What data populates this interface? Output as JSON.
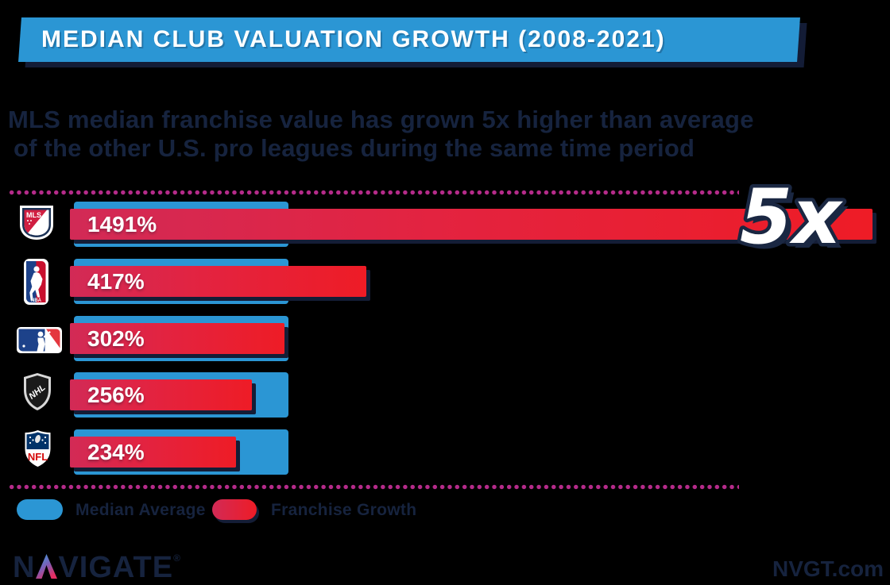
{
  "header": {
    "title": "MEDIAN CLUB VALUATION GROWTH (2008-2021)"
  },
  "subtitle": {
    "line1": "MLS median franchise value has grown 5x higher than average",
    "line2": "of the other U.S. pro leagues during the same time period"
  },
  "annotation": {
    "multiplier": "5x"
  },
  "legend": [
    {
      "label": "Median Average",
      "color": "#2b96d4"
    },
    {
      "label": "Franchise Growth",
      "color": "#ee1c26"
    }
  ],
  "footer": {
    "brand_n": "N",
    "brand_rest": "VIGATE",
    "trademark": "®",
    "website": "NVGT.com"
  },
  "colors": {
    "banner_blue": "#2b96d4",
    "bar_blue": "#2b96d4",
    "bar_red_start": "#d22a56",
    "bar_red_end": "#ee1c26",
    "navy": "#16233e",
    "dot_magenta": "#b52b8a",
    "background": "#000000"
  },
  "chart_data": {
    "type": "bar",
    "orientation": "horizontal",
    "title": "MEDIAN CLUB VALUATION GROWTH (2008-2021)",
    "categories": [
      "MLS",
      "NBA",
      "MLB",
      "NHL",
      "NFL"
    ],
    "series": [
      {
        "name": "Franchise Growth",
        "values": [
          1491,
          417,
          302,
          256,
          234
        ],
        "color": [
          "#d22a56",
          "#ee1c26"
        ]
      },
      {
        "name": "Median Average",
        "values": [
          302,
          302,
          302,
          302,
          302
        ],
        "color": "#2b96d4"
      }
    ],
    "value_labels": [
      "1491%",
      "417%",
      "302%",
      "256%",
      "234%"
    ],
    "annotation": "5x",
    "xlabel": "",
    "ylabel": "",
    "xlim": [
      0,
      1491
    ],
    "grid": false,
    "legend_position": "bottom",
    "note": "MLS bar visually clipped at right edge of canvas"
  }
}
